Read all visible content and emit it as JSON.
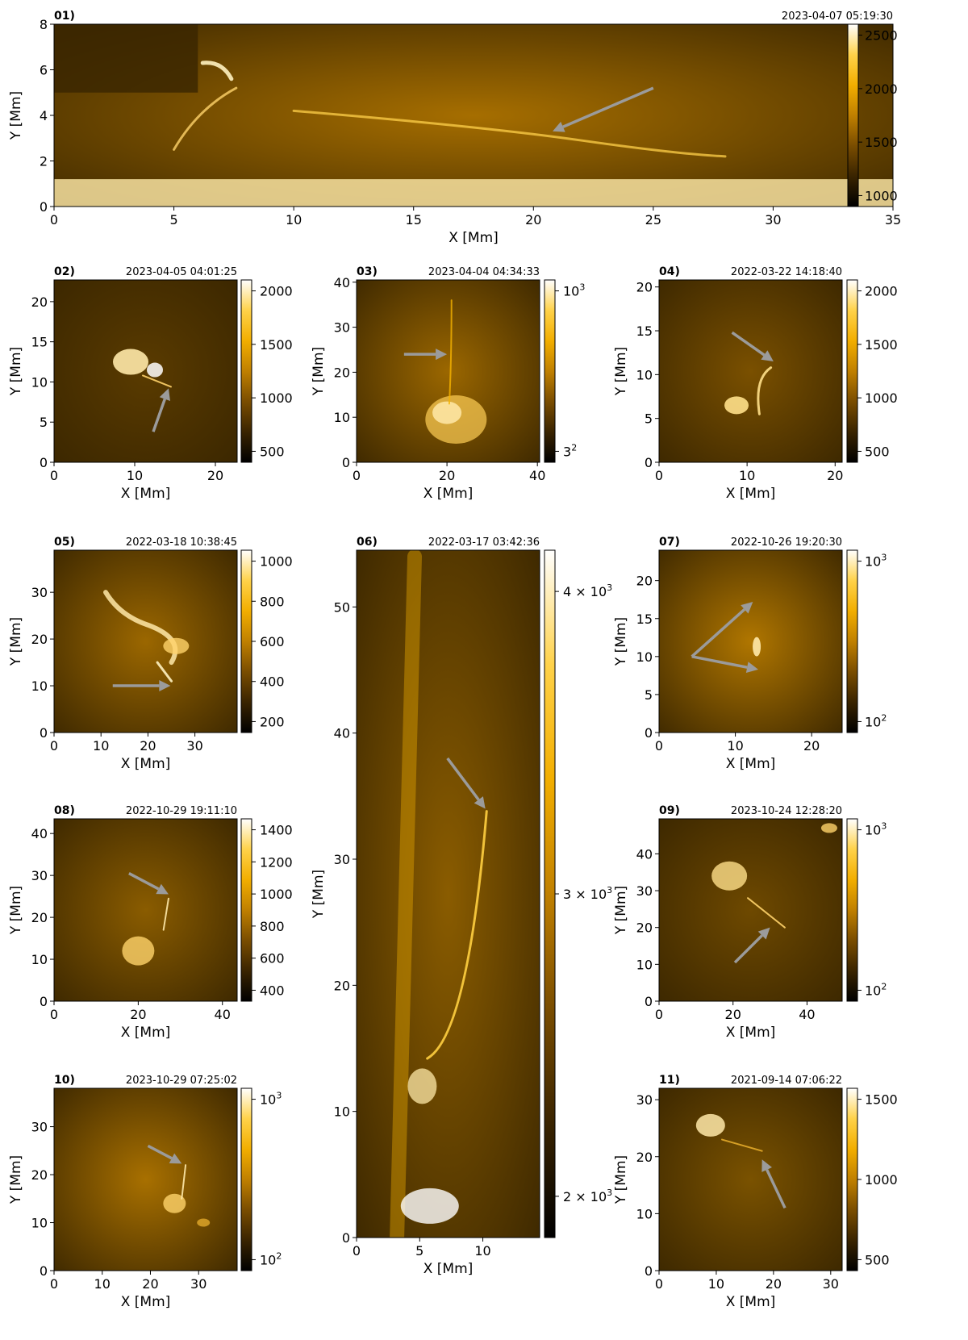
{
  "figure": {
    "arrow_color": "#9b9b9b",
    "colormap": [
      "#000000",
      "#3a2400",
      "#7a4d00",
      "#c08000",
      "#f2ae00",
      "#ffd24a",
      "#ffffff"
    ],
    "panels": [
      {
        "id": "01",
        "label": "01)",
        "timestamp": "2023-04-07   05:19:30",
        "xlabel": "X [Mm]",
        "ylabel": "Y [Mm]",
        "xlim": [
          0,
          35
        ],
        "ylim": [
          0,
          8
        ],
        "xticks": [
          "0",
          "5",
          "10",
          "15",
          "20",
          "25",
          "30",
          "35"
        ],
        "yticks": [
          "0",
          "2",
          "4",
          "6",
          "8"
        ],
        "colorbar": {
          "scale": "linear",
          "ticks": [
            "1000",
            "1500",
            "2000",
            "2500"
          ]
        },
        "arrows": [
          {
            "from": [
              25.0,
              5.2
            ],
            "to": [
              20.8,
              3.3
            ]
          }
        ]
      },
      {
        "id": "02",
        "label": "02)",
        "timestamp": "2023-04-05   04:01:25",
        "xlabel": "X [Mm]",
        "ylabel": "Y [Mm]",
        "xlim": [
          0,
          22.7
        ],
        "ylim": [
          0,
          22.7
        ],
        "xticks": [
          "0",
          "10",
          "20"
        ],
        "yticks": [
          "0",
          "5",
          "10",
          "15",
          "20"
        ],
        "colorbar": {
          "scale": "linear",
          "ticks": [
            "500",
            "1000",
            "1500",
            "2000"
          ]
        },
        "arrows": [
          {
            "from": [
              12.3,
              3.8
            ],
            "to": [
              14.2,
              9.2
            ]
          }
        ]
      },
      {
        "id": "03",
        "label": "03)",
        "timestamp": "2023-04-04   04:34:33",
        "xlabel": "X [Mm]",
        "ylabel": "Y [Mm]",
        "xlim": [
          0,
          40.5
        ],
        "ylim": [
          0,
          40.5
        ],
        "xticks": [
          "0",
          "20",
          "40"
        ],
        "yticks": [
          "0",
          "10",
          "20",
          "30",
          "40"
        ],
        "colorbar": {
          "scale": "log",
          "ticks": [
            "10",
            "3"
          ]
        },
        "arrows": [
          {
            "from": [
              10.5,
              24.0
            ],
            "to": [
              20.0,
              24.0
            ]
          }
        ]
      },
      {
        "id": "04",
        "label": "04)",
        "timestamp": "2022-03-22   14:18:40",
        "xlabel": "X [Mm]",
        "ylabel": "Y [Mm]",
        "xlim": [
          0,
          20.8
        ],
        "ylim": [
          0,
          20.8
        ],
        "xticks": [
          "0",
          "10",
          "20"
        ],
        "yticks": [
          "0",
          "5",
          "10",
          "15",
          "20"
        ],
        "colorbar": {
          "scale": "linear",
          "ticks": [
            "500",
            "1000",
            "1500",
            "2000"
          ]
        },
        "arrows": [
          {
            "from": [
              8.3,
              14.8
            ],
            "to": [
              13.0,
              11.5
            ]
          }
        ]
      },
      {
        "id": "05",
        "label": "05)",
        "timestamp": "2022-03-18   10:38:45",
        "xlabel": "X [Mm]",
        "ylabel": "Y [Mm]",
        "xlim": [
          0,
          39
        ],
        "ylim": [
          0,
          39
        ],
        "xticks": [
          "0",
          "10",
          "20",
          "30"
        ],
        "yticks": [
          "0",
          "10",
          "20",
          "30"
        ],
        "colorbar": {
          "scale": "linear",
          "ticks": [
            "200",
            "400",
            "600",
            "800",
            "1000"
          ]
        },
        "arrows": [
          {
            "from": [
              12.5,
              10.0
            ],
            "to": [
              24.8,
              10.0
            ]
          }
        ]
      },
      {
        "id": "06",
        "label": "06)",
        "timestamp": "2022-03-17   03:42:36",
        "xlabel": "X [Mm]",
        "ylabel": "Y [Mm]",
        "xlim": [
          0,
          14.5
        ],
        "ylim": [
          0,
          54.5
        ],
        "xticks": [
          "0",
          "5",
          "10"
        ],
        "yticks": [
          "0",
          "10",
          "20",
          "30",
          "40",
          "50"
        ],
        "colorbar": {
          "scale": "log",
          "ticks": [
            "4 × 10",
            "3 × 10",
            "2 × 10"
          ]
        },
        "arrows": [
          {
            "from": [
              7.2,
              38.0
            ],
            "to": [
              10.2,
              34.0
            ]
          }
        ]
      },
      {
        "id": "07",
        "label": "07)",
        "timestamp": "2022-10-26   19:20:30",
        "xlabel": "X [Mm]",
        "ylabel": "Y [Mm]",
        "xlim": [
          0,
          24
        ],
        "ylim": [
          0,
          24
        ],
        "xticks": [
          "0",
          "10",
          "20"
        ],
        "yticks": [
          "0",
          "5",
          "10",
          "15",
          "20"
        ],
        "colorbar": {
          "scale": "log",
          "ticks": [
            "10",
            "10"
          ]
        },
        "arrows": [
          {
            "from": [
              4.3,
              10.0
            ],
            "to": [
              12.3,
              17.2
            ]
          },
          {
            "from": [
              4.3,
              10.0
            ],
            "to": [
              13.0,
              8.3
            ]
          }
        ]
      },
      {
        "id": "08",
        "label": "08)",
        "timestamp": "2022-10-29   19:11:10",
        "xlabel": "X [Mm]",
        "ylabel": "Y [Mm]",
        "xlim": [
          0,
          43.5
        ],
        "ylim": [
          0,
          43.5
        ],
        "xticks": [
          "0",
          "20",
          "40"
        ],
        "yticks": [
          "0",
          "10",
          "20",
          "30",
          "40"
        ],
        "colorbar": {
          "scale": "linear",
          "ticks": [
            "400",
            "600",
            "800",
            "1000",
            "1200",
            "1400"
          ]
        },
        "arrows": [
          {
            "from": [
              17.8,
              30.5
            ],
            "to": [
              27.2,
              25.5
            ]
          }
        ]
      },
      {
        "id": "09",
        "label": "09)",
        "timestamp": "2023-10-24   12:28:20",
        "xlabel": "X [Mm]",
        "ylabel": "Y [Mm]",
        "xlim": [
          0,
          49.5
        ],
        "ylim": [
          0,
          49.5
        ],
        "xticks": [
          "0",
          "20",
          "40"
        ],
        "yticks": [
          "0",
          "10",
          "20",
          "30",
          "40"
        ],
        "colorbar": {
          "scale": "log",
          "ticks": [
            "10",
            "10"
          ]
        },
        "arrows": [
          {
            "from": [
              20.5,
              10.5
            ],
            "to": [
              30.0,
              20.0
            ]
          }
        ]
      },
      {
        "id": "10",
        "label": "10)",
        "timestamp": "2023-10-29   07:25:02",
        "xlabel": "X [Mm]",
        "ylabel": "Y [Mm]",
        "xlim": [
          0,
          38
        ],
        "ylim": [
          0,
          38
        ],
        "xticks": [
          "0",
          "10",
          "20",
          "30"
        ],
        "yticks": [
          "0",
          "10",
          "20",
          "30"
        ],
        "colorbar": {
          "scale": "log",
          "ticks": [
            "10",
            "10"
          ]
        },
        "arrows": [
          {
            "from": [
              19.5,
              26.0
            ],
            "to": [
              26.5,
              22.3
            ]
          }
        ]
      },
      {
        "id": "11",
        "label": "11)",
        "timestamp": "2021-09-14   07:06:22",
        "xlabel": "X [Mm]",
        "ylabel": "Y [Mm]",
        "xlim": [
          0,
          32
        ],
        "ylim": [
          0,
          32
        ],
        "xticks": [
          "0",
          "10",
          "20",
          "30"
        ],
        "yticks": [
          "0",
          "10",
          "20",
          "30"
        ],
        "colorbar": {
          "scale": "linear",
          "ticks": [
            "500",
            "1000",
            "1500"
          ]
        },
        "arrows": [
          {
            "from": [
              22.0,
              11.0
            ],
            "to": [
              18.0,
              19.5
            ]
          }
        ]
      }
    ]
  }
}
